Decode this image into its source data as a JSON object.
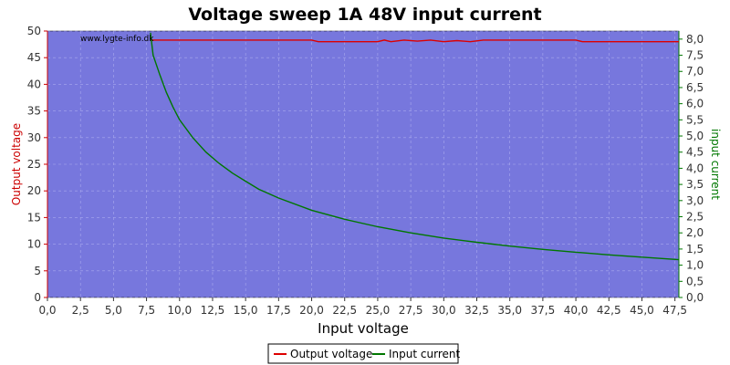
{
  "chart_data": {
    "type": "line",
    "title": "Voltage sweep 1A 48V input current",
    "watermark": "www.lygte-info.dk",
    "xlabel": "Input voltage",
    "ylabel_left": "Output voltage",
    "ylabel_right": "input current",
    "xlim": [
      0,
      47.8
    ],
    "ylim_left": [
      0,
      50
    ],
    "ylim_right": [
      0,
      8.25
    ],
    "x_ticks": [
      "0,0",
      "2,5",
      "5,0",
      "7,5",
      "10,0",
      "12,5",
      "15,0",
      "17,5",
      "20,0",
      "22,5",
      "25,0",
      "27,5",
      "30,0",
      "32,5",
      "35,0",
      "37,5",
      "40,0",
      "42,5",
      "45,0",
      "47,5"
    ],
    "y_left_ticks": [
      "0",
      "5",
      "10",
      "15",
      "20",
      "25",
      "30",
      "35",
      "40",
      "45",
      "50"
    ],
    "y_right_ticks": [
      "0,0",
      "0,5",
      "1,0",
      "1,5",
      "2,0",
      "2,5",
      "3,0",
      "3,5",
      "4,0",
      "4,5",
      "5,0",
      "5,5",
      "6,0",
      "6,5",
      "7,0",
      "7,5",
      "8,0"
    ],
    "grid": true,
    "legend_position": "bottom",
    "colors": {
      "plot_bg": "#7777dd",
      "output_voltage": "#dd0000",
      "input_current": "#007700",
      "left_axis": "#cc0000",
      "right_axis": "#007700",
      "grid": "#aaaaee"
    },
    "series": [
      {
        "name": "Output voltage",
        "axis": "left",
        "x": [
          7.8,
          10,
          15,
          20,
          20.5,
          25,
          25.5,
          26,
          27,
          28,
          29,
          30,
          31,
          32,
          33,
          35,
          40,
          40.5,
          45,
          47.8
        ],
        "y": [
          48.3,
          48.3,
          48.3,
          48.3,
          48.0,
          48.0,
          48.3,
          48.0,
          48.3,
          48.1,
          48.3,
          48.0,
          48.2,
          48.0,
          48.3,
          48.3,
          48.3,
          48.0,
          48.0,
          48.0
        ]
      },
      {
        "name": "Input current",
        "axis": "right",
        "x": [
          7.8,
          8,
          8.5,
          9,
          9.5,
          10,
          11,
          12,
          13,
          14,
          15,
          16,
          17.5,
          20,
          22.5,
          25,
          27.5,
          30,
          32.5,
          35,
          37.5,
          40,
          42.5,
          45,
          47.8
        ],
        "y": [
          8.2,
          7.5,
          6.9,
          6.35,
          5.9,
          5.5,
          4.95,
          4.5,
          4.15,
          3.85,
          3.6,
          3.35,
          3.08,
          2.7,
          2.42,
          2.19,
          2.0,
          1.84,
          1.71,
          1.59,
          1.49,
          1.4,
          1.32,
          1.25,
          1.17
        ]
      }
    ]
  }
}
